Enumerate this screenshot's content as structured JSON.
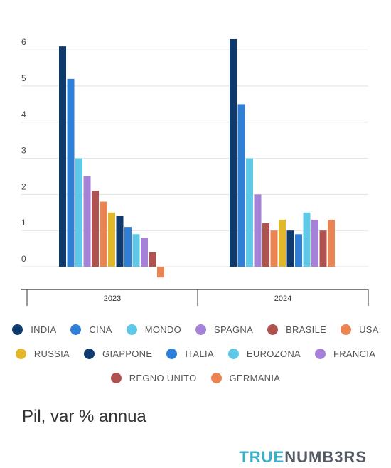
{
  "chart_data": {
    "type": "bar",
    "groups": [
      "2023",
      "2024"
    ],
    "series": [
      {
        "name": "INDIA",
        "color": "#0e3a6e",
        "values": [
          6.1,
          6.3
        ]
      },
      {
        "name": "CINA",
        "color": "#2f7fd6",
        "values": [
          5.2,
          4.5
        ]
      },
      {
        "name": "MONDO",
        "color": "#5ec8e6",
        "values": [
          3.0,
          3.0
        ]
      },
      {
        "name": "SPAGNA",
        "color": "#a681d8",
        "values": [
          2.5,
          2.0
        ]
      },
      {
        "name": "BRASILE",
        "color": "#b0524f",
        "values": [
          2.1,
          1.2
        ]
      },
      {
        "name": "USA",
        "color": "#ea8452",
        "values": [
          1.8,
          1.0
        ]
      },
      {
        "name": "RUSSIA",
        "color": "#e2b72c",
        "values": [
          1.5,
          1.3
        ]
      },
      {
        "name": "GIAPPONE",
        "color": "#0e3a6e",
        "values": [
          1.4,
          1.0
        ]
      },
      {
        "name": "ITALIA",
        "color": "#2f7fd6",
        "values": [
          1.1,
          0.9
        ]
      },
      {
        "name": "EUROZONA",
        "color": "#5ec8e6",
        "values": [
          0.9,
          1.5
        ]
      },
      {
        "name": "FRANCIA",
        "color": "#a681d8",
        "values": [
          0.8,
          1.3
        ]
      },
      {
        "name": "REGNO UNITO",
        "color": "#b0524f",
        "values": [
          0.4,
          1.0
        ]
      },
      {
        "name": "GERMANIA",
        "color": "#ea8452",
        "values": [
          -0.3,
          1.3
        ]
      }
    ],
    "yticks": [
      0,
      1,
      2,
      3,
      4,
      5,
      6
    ],
    "ylim": [
      -0.6,
      6.3
    ],
    "grid": true,
    "legend_position": "bottom"
  },
  "caption": "Pil, var % annua",
  "brand": {
    "part1": "TRUE",
    "part2": "NUMB3RS"
  }
}
